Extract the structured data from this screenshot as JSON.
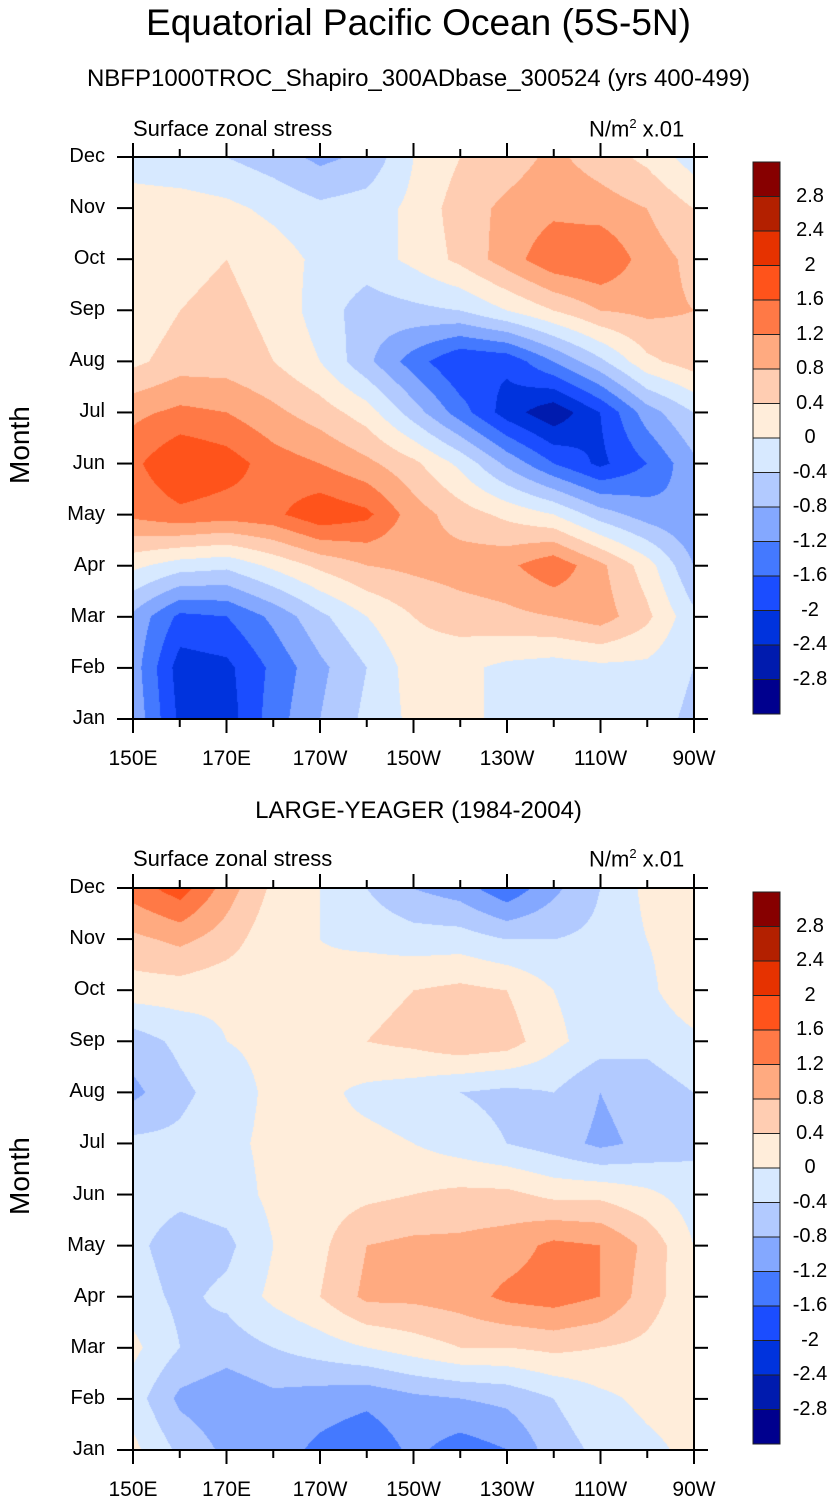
{
  "title": "Equatorial Pacific Ocean (5S-5N)",
  "chart_data": [
    {
      "type": "heatmap",
      "title": "NBFP1000TROC_Shapiro_300ADbase_300524 (yrs 400-499)",
      "left_string": "Surface zonal stress",
      "right_string": "N/m² x.01",
      "ylabel": "Month",
      "xlabel": "",
      "x_ticks": [
        "150E",
        "170E",
        "170W",
        "150W",
        "130W",
        "110W",
        "90W"
      ],
      "y_ticks": [
        "Jan",
        "Feb",
        "Mar",
        "Apr",
        "May",
        "Jun",
        "Jul",
        "Aug",
        "Sep",
        "Oct",
        "Nov",
        "Dec"
      ],
      "x_lon": [
        150,
        160,
        170,
        180,
        190,
        200,
        210,
        220,
        230,
        240,
        250,
        260,
        270
      ],
      "colorbar_levels": [
        "2.8",
        "2.4",
        "2",
        "1.6",
        "1.2",
        "0.8",
        "0.4",
        "0",
        "-0.4",
        "-0.8",
        "-1.2",
        "-1.6",
        "-2",
        "-2.4",
        "-2.8"
      ],
      "values_by_month": [
        [
          -0.9,
          -2.1,
          -2.2,
          -1.4,
          -0.8,
          -0.3,
          0.1,
          0.2,
          -0.2,
          -0.3,
          -0.3,
          -0.2,
          -0.5
        ],
        [
          -1.0,
          -2.2,
          -2.1,
          -1.5,
          -0.9,
          -0.4,
          0.2,
          0.1,
          -0.1,
          -0.2,
          -0.1,
          -0.1,
          -0.4
        ],
        [
          -0.9,
          -1.7,
          -1.6,
          -1.1,
          -0.5,
          0.0,
          0.4,
          0.6,
          0.7,
          0.8,
          1.0,
          0.5,
          -0.3
        ],
        [
          0.1,
          -0.2,
          -0.3,
          0.1,
          0.5,
          0.8,
          0.9,
          1.0,
          1.1,
          1.5,
          0.9,
          0.2,
          -0.8
        ],
        [
          1.3,
          1.5,
          1.4,
          1.5,
          1.9,
          1.7,
          1.0,
          0.6,
          0.3,
          0.0,
          -0.6,
          -1.0,
          -1.2
        ],
        [
          1.5,
          2.0,
          1.8,
          1.4,
          1.2,
          0.9,
          0.5,
          -0.1,
          -0.9,
          -1.6,
          -2.1,
          -1.6,
          -0.9
        ],
        [
          1.1,
          1.3,
          1.2,
          0.9,
          0.6,
          0.2,
          -0.6,
          -1.4,
          -2.2,
          -2.7,
          -2.0,
          -1.0,
          -0.4
        ],
        [
          0.3,
          0.6,
          0.6,
          0.4,
          0.0,
          -0.7,
          -1.4,
          -2.0,
          -1.9,
          -1.2,
          -0.5,
          0.3,
          0.6
        ],
        [
          0.1,
          0.4,
          0.5,
          0.3,
          -0.2,
          -0.6,
          -0.5,
          -0.4,
          0.0,
          0.4,
          0.8,
          0.9,
          0.8
        ],
        [
          0.0,
          0.3,
          0.4,
          0.2,
          -0.1,
          -0.2,
          0.1,
          0.5,
          1.0,
          1.5,
          1.6,
          1.0,
          0.7
        ],
        [
          0.2,
          0.2,
          0.1,
          -0.1,
          -0.3,
          -0.2,
          0.1,
          0.6,
          0.9,
          1.1,
          1.0,
          0.8,
          0.4
        ],
        [
          -0.2,
          -0.3,
          -0.4,
          -0.6,
          -0.9,
          -0.7,
          0.0,
          0.4,
          0.6,
          0.9,
          0.6,
          0.3,
          -0.2
        ]
      ]
    },
    {
      "type": "heatmap",
      "title": "LARGE-YEAGER (1984-2004)",
      "left_string": "Surface zonal stress",
      "right_string": "N/m² x.01",
      "ylabel": "Month",
      "xlabel": "",
      "x_ticks": [
        "150E",
        "170E",
        "170W",
        "150W",
        "130W",
        "110W",
        "90W"
      ],
      "y_ticks": [
        "Jan",
        "Feb",
        "Mar",
        "Apr",
        "May",
        "Jun",
        "Jul",
        "Aug",
        "Sep",
        "Oct",
        "Nov",
        "Dec"
      ],
      "x_lon": [
        150,
        160,
        170,
        180,
        190,
        200,
        210,
        220,
        230,
        240,
        250,
        260,
        270
      ],
      "colorbar_levels": [
        "2.8",
        "2.4",
        "2",
        "1.6",
        "1.2",
        "0.8",
        "0.4",
        "0",
        "-0.4",
        "-0.8",
        "-1.2",
        "-1.6",
        "-2",
        "-2.4",
        "-2.8"
      ],
      "values_by_month": [
        [
          0.1,
          -0.5,
          -0.9,
          -1.0,
          -1.3,
          -1.5,
          -1.1,
          -1.4,
          -1.2,
          -0.6,
          -0.3,
          -0.1,
          0.1
        ],
        [
          -0.2,
          -0.9,
          -1.1,
          -0.9,
          -1.0,
          -1.1,
          -0.9,
          -0.8,
          -0.7,
          -0.4,
          -0.1,
          0.1,
          0.2
        ],
        [
          0.1,
          -0.4,
          -0.6,
          -0.4,
          -0.2,
          0.0,
          0.2,
          0.4,
          0.4,
          0.5,
          0.4,
          0.3,
          0.1
        ],
        [
          -0.2,
          -0.5,
          -0.3,
          0.1,
          0.4,
          0.9,
          0.9,
          1.0,
          1.3,
          1.4,
          1.2,
          0.6,
          0.1
        ],
        [
          -0.3,
          -0.6,
          -0.5,
          0.0,
          0.3,
          0.8,
          0.9,
          0.9,
          1.0,
          1.3,
          1.2,
          0.7,
          0.0
        ],
        [
          -0.2,
          -0.3,
          -0.2,
          0.1,
          0.2,
          0.3,
          0.4,
          0.5,
          0.5,
          0.3,
          0.3,
          0.1,
          -0.2
        ],
        [
          -0.3,
          -0.3,
          -0.1,
          0.1,
          0.1,
          0.1,
          0.0,
          -0.2,
          -0.4,
          -0.6,
          -0.9,
          -0.7,
          -0.5
        ],
        [
          -0.9,
          -0.5,
          -0.2,
          0.1,
          0.1,
          -0.1,
          -0.2,
          -0.4,
          -0.5,
          -0.4,
          -0.8,
          -0.6,
          -0.4
        ],
        [
          -0.6,
          -0.3,
          0.0,
          0.1,
          0.1,
          0.4,
          0.5,
          0.7,
          0.6,
          0.1,
          -0.2,
          -0.3,
          -0.1
        ],
        [
          0.2,
          0.2,
          0.1,
          0.1,
          0.1,
          0.3,
          0.4,
          0.5,
          0.4,
          0.0,
          -0.2,
          -0.1,
          0.3
        ],
        [
          0.7,
          0.9,
          0.6,
          0.1,
          0.0,
          -0.1,
          -0.2,
          -0.2,
          -0.4,
          -0.4,
          -0.3,
          0.0,
          0.2
        ],
        [
          1.4,
          1.8,
          1.0,
          0.3,
          0.0,
          -0.4,
          -0.8,
          -1.0,
          -1.5,
          -0.9,
          -0.4,
          0.1,
          0.3
        ]
      ]
    }
  ],
  "colormap": {
    "levels_numeric": [
      -2.8,
      -2.4,
      -2.0,
      -1.6,
      -1.2,
      -0.8,
      -0.4,
      0,
      0.4,
      0.8,
      1.2,
      1.6,
      2.0,
      2.4,
      2.8
    ],
    "colors": [
      "#00008e",
      "#001bae",
      "#0033dd",
      "#1b4dff",
      "#4479ff",
      "#84a8ff",
      "#b2caff",
      "#d7e9ff",
      "#ffedda",
      "#ffcdb2",
      "#ffaa80",
      "#ff7946",
      "#ff531b",
      "#e63200",
      "#b32000",
      "#870000"
    ]
  }
}
